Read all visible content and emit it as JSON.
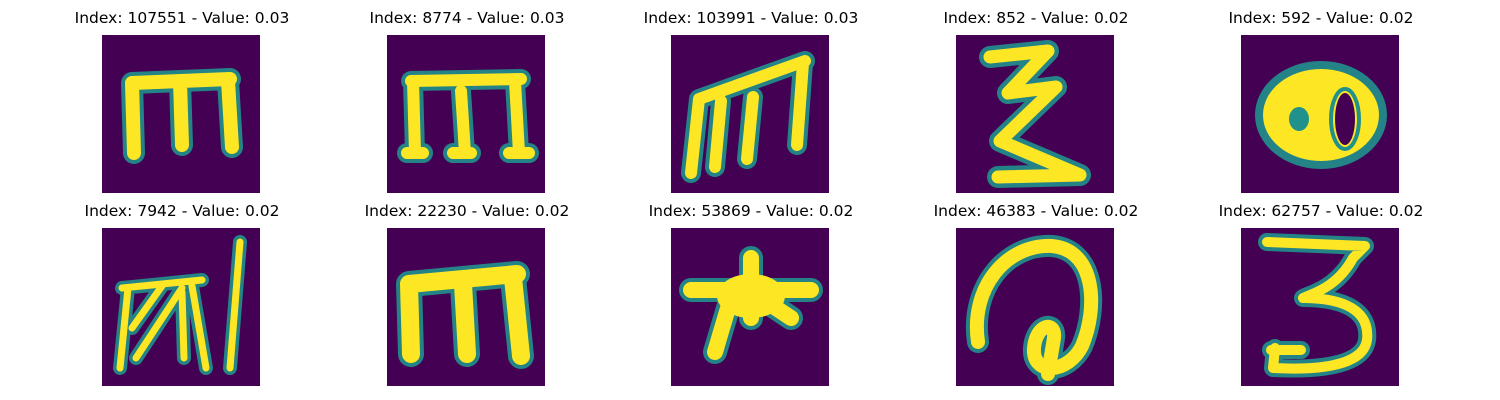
{
  "colors": {
    "background": "#440154",
    "mid": "#21918c",
    "high": "#fde725"
  },
  "panels": [
    {
      "title": "Index: 107551 - Value: 0.03",
      "glyph": "m-wide-icon"
    },
    {
      "title": "Index: 8774 - Value: 0.03",
      "glyph": "m-tall-icon"
    },
    {
      "title": "Index: 103991 - Value: 0.03",
      "glyph": "m-slanted-icon"
    },
    {
      "title": "Index: 852 - Value: 0.02",
      "glyph": "zigzag-icon"
    },
    {
      "title": "Index: 592 - Value: 0.02",
      "glyph": "double-blob-icon"
    },
    {
      "title": "Index: 7942 - Value: 0.02",
      "glyph": "scribble-icon"
    },
    {
      "title": "Index: 22230 - Value: 0.02",
      "glyph": "m-bold-icon"
    },
    {
      "title": "Index: 53869 - Value: 0.02",
      "glyph": "star-blob-icon"
    },
    {
      "title": "Index: 46383 - Value: 0.02",
      "glyph": "loop-icon"
    },
    {
      "title": "Index: 62757 - Value: 0.02",
      "glyph": "three-icon"
    }
  ]
}
